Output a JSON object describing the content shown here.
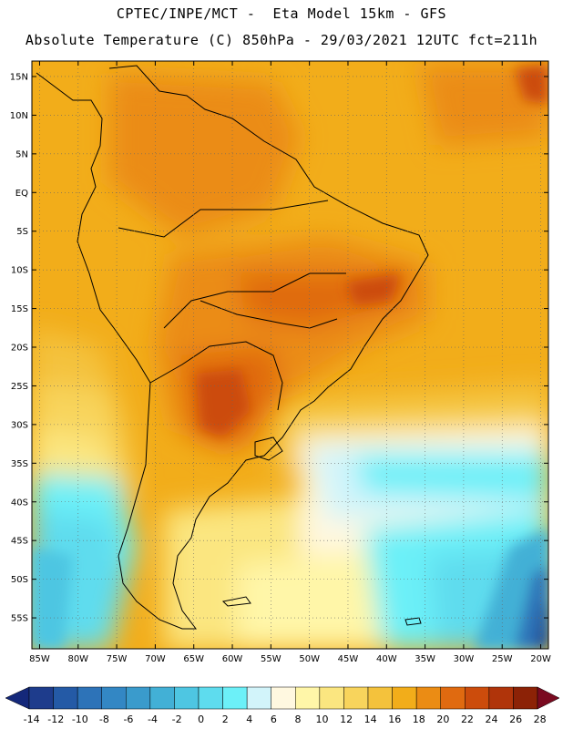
{
  "header": {
    "line1": "CPTEC/INPE/MCT -  Eta Model 15km - GFS",
    "line2": "Absolute Temperature (C) 850hPa - 29/03/2021 12UTC fct=211h"
  },
  "map": {
    "lon_range": [
      -86,
      -19
    ],
    "lat_range": [
      -59,
      17
    ],
    "lat_ticks": [
      {
        "value": 15,
        "label": "15N"
      },
      {
        "value": 10,
        "label": "10N"
      },
      {
        "value": 5,
        "label": "5N"
      },
      {
        "value": 0,
        "label": "EQ"
      },
      {
        "value": -5,
        "label": "5S"
      },
      {
        "value": -10,
        "label": "10S"
      },
      {
        "value": -15,
        "label": "15S"
      },
      {
        "value": -20,
        "label": "20S"
      },
      {
        "value": -25,
        "label": "25S"
      },
      {
        "value": -30,
        "label": "30S"
      },
      {
        "value": -35,
        "label": "35S"
      },
      {
        "value": -40,
        "label": "40S"
      },
      {
        "value": -45,
        "label": "45S"
      },
      {
        "value": -50,
        "label": "50S"
      },
      {
        "value": -55,
        "label": "55S"
      }
    ],
    "lon_ticks": [
      {
        "value": -85,
        "label": "85W"
      },
      {
        "value": -80,
        "label": "80W"
      },
      {
        "value": -75,
        "label": "75W"
      },
      {
        "value": -70,
        "label": "70W"
      },
      {
        "value": -65,
        "label": "65W"
      },
      {
        "value": -60,
        "label": "60W"
      },
      {
        "value": -55,
        "label": "55W"
      },
      {
        "value": -50,
        "label": "50W"
      },
      {
        "value": -45,
        "label": "45W"
      },
      {
        "value": -40,
        "label": "40W"
      },
      {
        "value": -35,
        "label": "35W"
      },
      {
        "value": -30,
        "label": "30W"
      },
      {
        "value": -25,
        "label": "25W"
      },
      {
        "value": -20,
        "label": "20W"
      }
    ]
  },
  "colorbar": {
    "labels": [
      "-14",
      "-12",
      "-10",
      "-8",
      "-6",
      "-4",
      "-2",
      "0",
      "2",
      "4",
      "6",
      "8",
      "10",
      "12",
      "14",
      "16",
      "18",
      "20",
      "22",
      "24",
      "26",
      "28"
    ],
    "colors": [
      "#1e3c8c",
      "#245aa6",
      "#2d73b8",
      "#3387c4",
      "#3a9bcc",
      "#42b0d6",
      "#4ec6e2",
      "#5edcee",
      "#6cf0f8",
      "#d2f4fa",
      "#fff8e0",
      "#fff6a8",
      "#fbe680",
      "#f8d45c",
      "#f4c23c",
      "#f2ad1a",
      "#eb8c14",
      "#e06a10",
      "#cc4c0c",
      "#b0340a",
      "#8c2206"
    ],
    "low_arrow_color": "#14287a",
    "high_arrow_color": "#7a0a20"
  }
}
